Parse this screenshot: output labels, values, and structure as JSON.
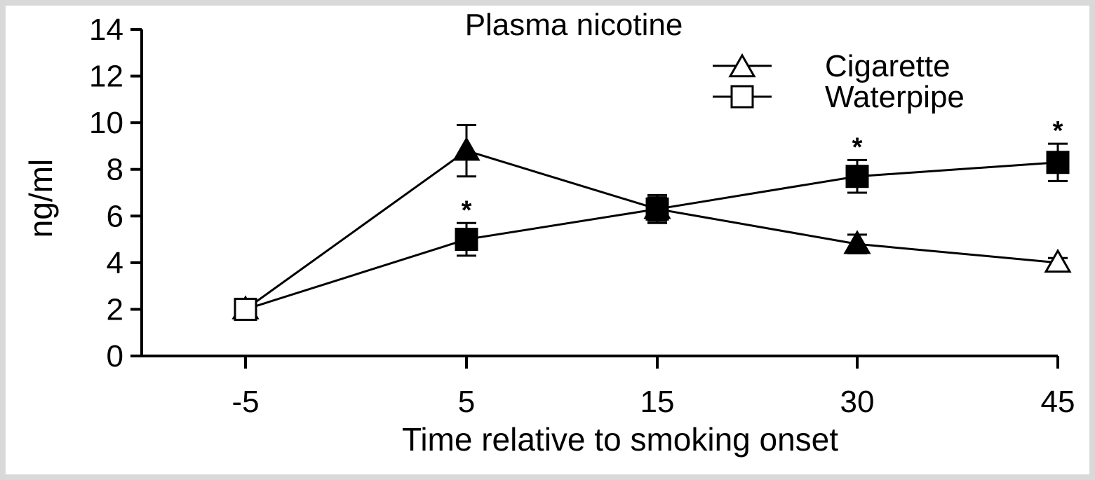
{
  "chart_data": {
    "type": "line",
    "title": "Plasma nicotine",
    "xlabel": "Time relative to smoking onset",
    "ylabel": "ng/ml",
    "categories": [
      "-5",
      "5",
      "15",
      "30",
      "45"
    ],
    "ylim": [
      0,
      14
    ],
    "yticks": [
      "0",
      "2",
      "4",
      "6",
      "8",
      "10",
      "12",
      "14"
    ],
    "grid": false,
    "legend_position": "top-right",
    "series": [
      {
        "name": "Cigarette",
        "marker": "triangle",
        "values": [
          2.0,
          8.8,
          6.3,
          4.8,
          4.0
        ],
        "errors": [
          0,
          1.1,
          0.5,
          0.4,
          0.2
        ],
        "filled": [
          false,
          true,
          true,
          true,
          false
        ]
      },
      {
        "name": "Waterpipe",
        "marker": "square",
        "values": [
          2.0,
          5.0,
          6.3,
          7.7,
          8.3
        ],
        "errors": [
          0,
          0.7,
          0.6,
          0.7,
          0.8
        ],
        "filled": [
          false,
          true,
          true,
          true,
          true
        ]
      }
    ],
    "significance_markers": [
      {
        "category": "5",
        "label": "*"
      },
      {
        "category": "30",
        "label": "*"
      },
      {
        "category": "45",
        "label": "*"
      }
    ]
  }
}
